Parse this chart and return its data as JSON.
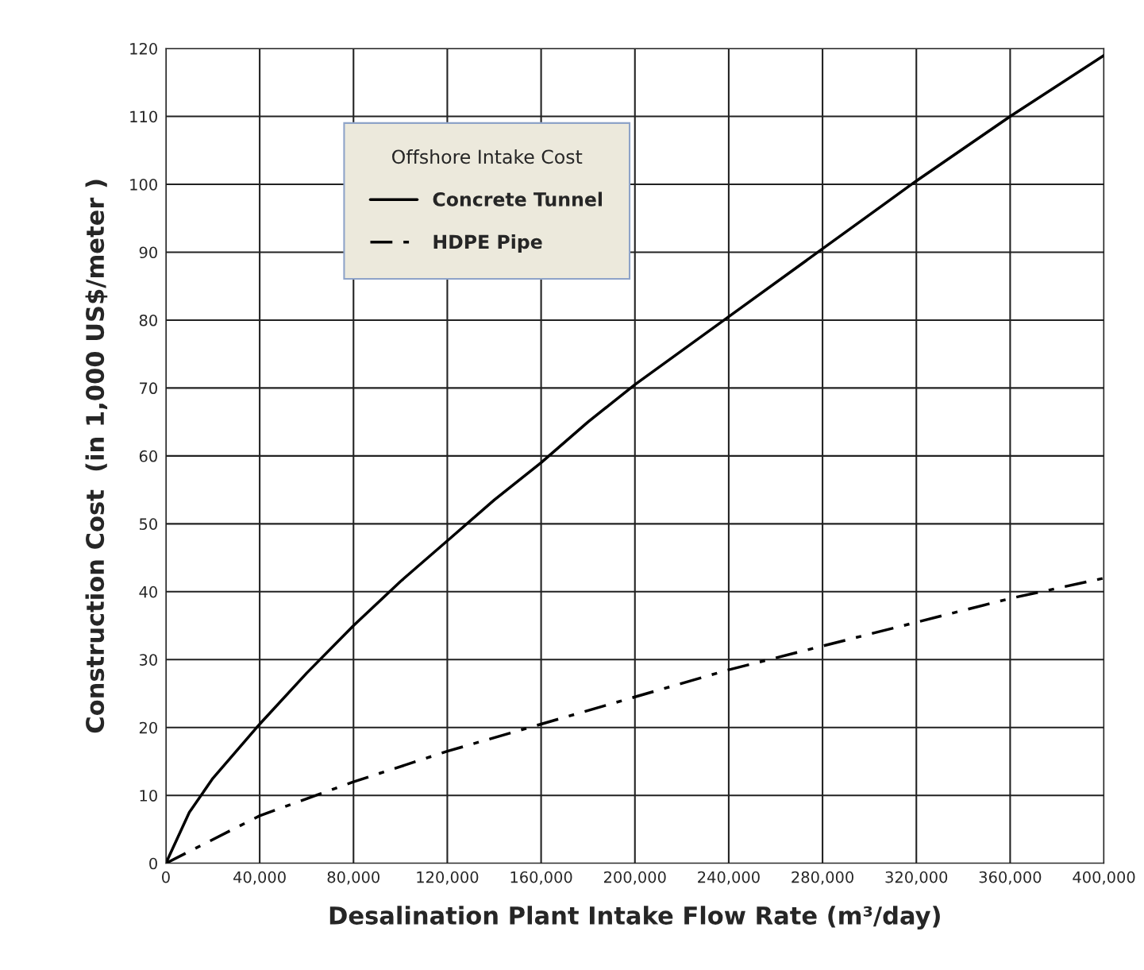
{
  "chart_data": {
    "type": "line",
    "xlabel": "Desalination Plant Intake Flow Rate (m³/day)",
    "ylabel": "Construction Cost  (in 1,000 US$/meter )",
    "legend_title": "Offshore Intake Cost",
    "series": [
      {
        "name": "Concrete Tunnel",
        "color": "#000000",
        "line_style": "solid",
        "x": [
          0,
          10000,
          20000,
          40000,
          60000,
          80000,
          100000,
          120000,
          140000,
          160000,
          180000,
          200000,
          240000,
          280000,
          320000,
          360000,
          400000
        ],
        "values": [
          0,
          7.5,
          12.5,
          20.5,
          28,
          35,
          41.5,
          47.5,
          53.5,
          59,
          65,
          70.5,
          80.5,
          90.5,
          100.5,
          110,
          119
        ]
      },
      {
        "name": "HDPE Pipe",
        "color": "#000000",
        "line_style": "dashdot",
        "x": [
          0,
          40000,
          80000,
          120000,
          160000,
          200000,
          240000,
          280000,
          320000,
          360000,
          400000
        ],
        "values": [
          0,
          7,
          12,
          16.5,
          20.5,
          24.5,
          28.5,
          32,
          35.5,
          39,
          42
        ]
      }
    ],
    "xlim": [
      0,
      400000
    ],
    "ylim": [
      0,
      120
    ],
    "xticks": [
      0,
      {
        "value": 40000,
        "label": "40,000"
      },
      {
        "value": 80000,
        "label": "80,000"
      },
      {
        "value": 120000,
        "label": "120,000"
      },
      {
        "value": 160000,
        "label": "160,000"
      },
      {
        "value": 200000,
        "label": "200,000"
      },
      {
        "value": 240000,
        "label": "240,000"
      },
      {
        "value": 280000,
        "label": "280,000"
      },
      {
        "value": 320000,
        "label": "320,000"
      },
      {
        "value": 360000,
        "label": "360,000"
      },
      {
        "value": 400000,
        "label": "400,000"
      }
    ],
    "yticks": [
      0,
      10,
      20,
      30,
      40,
      50,
      60,
      70,
      80,
      90,
      100,
      110,
      120
    ],
    "grid": true,
    "legend": "top left",
    "marker": "none"
  }
}
